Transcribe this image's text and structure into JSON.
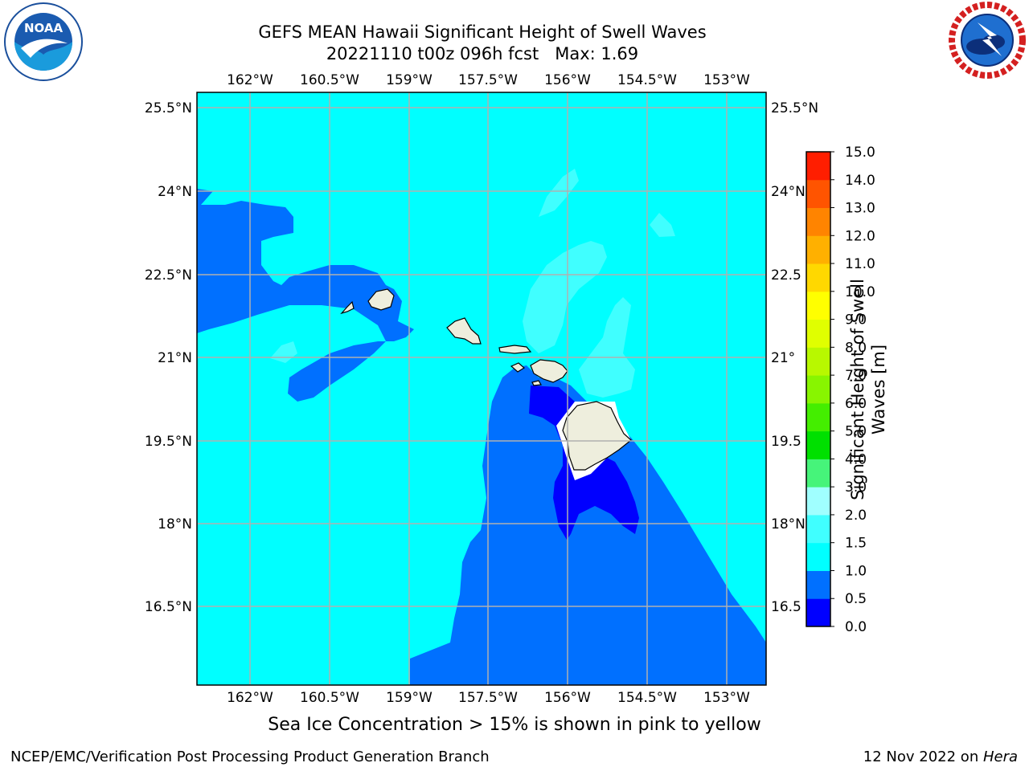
{
  "title": {
    "line1": "GEFS MEAN Hawaii Significant Height of Swell Waves",
    "line2": "20221110 t00z 096h fcst   Max: 1.69"
  },
  "logos": {
    "left": "NOAA",
    "left_ring_text": "NATIONAL OCEANIC AND ATMOSPHERIC ADMINISTRATION · U.S. DEPARTMENT OF COMMERCE",
    "right_ring_text": "NATIONAL WEATHER SERVICE"
  },
  "map": {
    "lon_ticks": [
      "162°W",
      "160.5°W",
      "159°W",
      "157.5°W",
      "156°W",
      "154.5°W",
      "153°W"
    ],
    "lat_ticks": [
      "25.5°N",
      "24°N",
      "22.5°N",
      "21°N",
      "19.5°N",
      "18°N",
      "16.5°N"
    ],
    "right_lat_ticks": [
      "25.5°N",
      "24°N",
      "22.5",
      "21°",
      "19.5",
      "18°N",
      "16.5"
    ],
    "lon_range": [
      -163.0,
      -152.3
    ],
    "lat_range": [
      15.0,
      25.7
    ],
    "grid": true
  },
  "colorbar": {
    "label": "Significant Height of Swell Waves [m]",
    "levels": [
      "0.0",
      "0.5",
      "1.0",
      "1.5",
      "2.0",
      "3.0",
      "4.0",
      "5.0",
      "6.0",
      "7.0",
      "8.0",
      "9.0",
      "10.0",
      "11.0",
      "12.0",
      "13.0",
      "14.0",
      "15.0"
    ],
    "colors": [
      "#0000ff",
      "#0070ff",
      "#00ffff",
      "#40ffff",
      "#a0ffff",
      "#46f47a",
      "#00e000",
      "#44ee00",
      "#88f500",
      "#b8f800",
      "#e0ff00",
      "#ffff00",
      "#ffd800",
      "#ffb000",
      "#ff8400",
      "#ff5400",
      "#ff1e00"
    ]
  },
  "legend_colors": {
    "land": "#eeeedd",
    "ocean_0_0.5": "#0000ff",
    "ocean_0.5_1": "#0070ff",
    "ocean_1_1.5": "#00ffff",
    "ocean_1.5_2": "#40ffff",
    "ocean_2_3": "#a0ffff"
  },
  "subtitle": "Sea Ice Concentration > 15% is shown in pink to yellow",
  "footer": {
    "credit": "NCEP/EMC/Verification Post Processing Product Generation Branch",
    "date": "12 Nov 2022 on ",
    "machine": "Hera"
  }
}
